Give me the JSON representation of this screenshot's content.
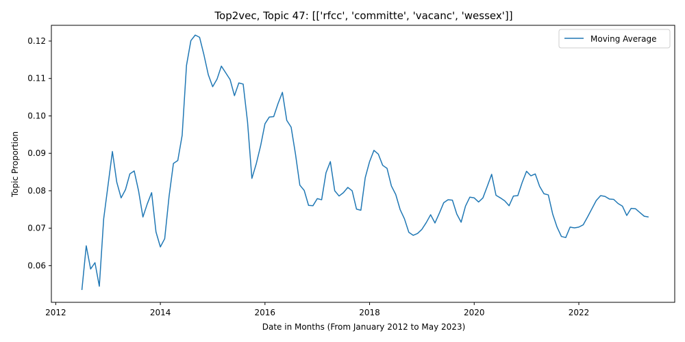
{
  "chart_data": {
    "type": "line",
    "title": "Top2vec, Topic 47: [['rfcc', 'committe', 'vacanc', 'wessex']]",
    "xlabel": "Date in Months (From January 2012 to May 2023)",
    "ylabel": "Topic Proportion",
    "x_ticks": [
      "2012",
      "2014",
      "2016",
      "2018",
      "2020",
      "2022"
    ],
    "y_ticks": [
      "0.06",
      "0.07",
      "0.08",
      "0.09",
      "0.10",
      "0.11",
      "0.12"
    ],
    "xlim": [
      "2011-12",
      "2023-11"
    ],
    "ylim": [
      0.0502,
      0.1242
    ],
    "grid": false,
    "legend_position": "top-right",
    "line_color": "#1f77b4",
    "series": [
      {
        "name": "Moving Average",
        "x_start": "2012-07",
        "x_end": "2023-05",
        "x_step": "month",
        "values": [
          0.0535,
          0.0653,
          0.0591,
          0.0608,
          0.0545,
          0.0725,
          0.0815,
          0.0905,
          0.0823,
          0.0781,
          0.0803,
          0.0845,
          0.0853,
          0.08,
          0.073,
          0.0765,
          0.0795,
          0.069,
          0.065,
          0.0672,
          0.0785,
          0.0873,
          0.0881,
          0.0948,
          0.1135,
          0.1201,
          0.1216,
          0.121,
          0.1163,
          0.111,
          0.1078,
          0.1098,
          0.1133,
          0.1115,
          0.1097,
          0.1054,
          0.1088,
          0.1085,
          0.0984,
          0.0833,
          0.0872,
          0.092,
          0.0979,
          0.0997,
          0.0998,
          0.1033,
          0.1063,
          0.0988,
          0.097,
          0.0898,
          0.0815,
          0.0801,
          0.0761,
          0.076,
          0.0779,
          0.0776,
          0.0848,
          0.0878,
          0.08,
          0.0786,
          0.0795,
          0.0809,
          0.08,
          0.0751,
          0.0748,
          0.0835,
          0.0878,
          0.0908,
          0.0898,
          0.0868,
          0.086,
          0.0813,
          0.079,
          0.075,
          0.0725,
          0.0689,
          0.0681,
          0.0686,
          0.0697,
          0.0715,
          0.0736,
          0.0714,
          0.074,
          0.0768,
          0.0776,
          0.0775,
          0.0738,
          0.0716,
          0.0759,
          0.0783,
          0.0781,
          0.077,
          0.0781,
          0.0812,
          0.0844,
          0.0788,
          0.0781,
          0.0773,
          0.076,
          0.0786,
          0.0787,
          0.0822,
          0.0852,
          0.084,
          0.0845,
          0.0812,
          0.0792,
          0.0789,
          0.0738,
          0.0703,
          0.0678,
          0.0675,
          0.0703,
          0.0701,
          0.0703,
          0.0709,
          0.073,
          0.0752,
          0.0774,
          0.0787,
          0.0785,
          0.0778,
          0.0777,
          0.0766,
          0.0759,
          0.0734,
          0.0753,
          0.0752,
          0.0742,
          0.0732,
          0.073
        ]
      }
    ]
  }
}
